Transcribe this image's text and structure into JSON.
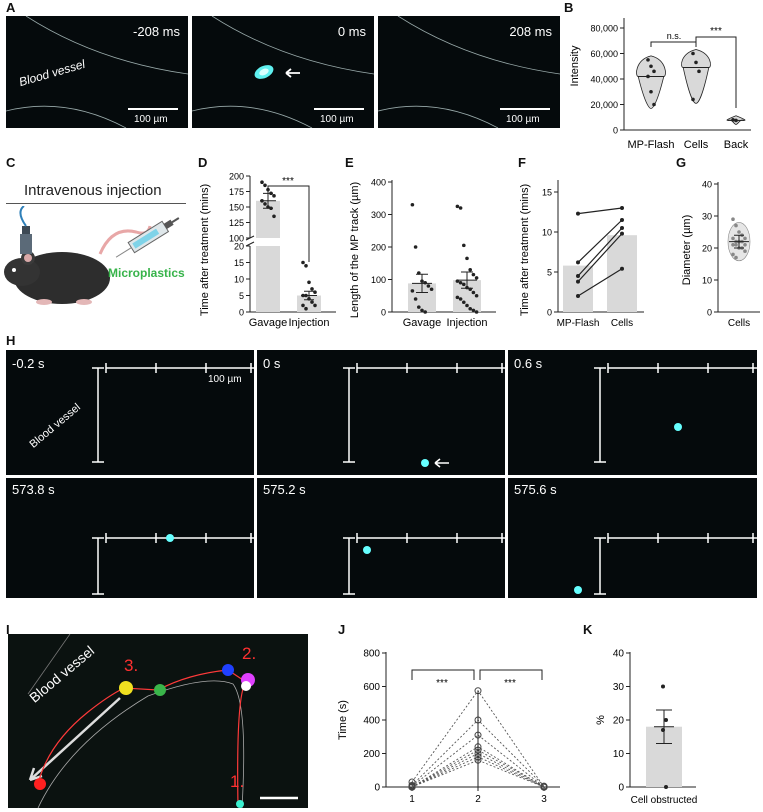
{
  "panel_labels": {
    "A": "A",
    "B": "B",
    "C": "C",
    "D": "D",
    "E": "E",
    "F": "F",
    "G": "G",
    "H": "H",
    "I": "I",
    "J": "J",
    "K": "K"
  },
  "panel_a": {
    "frames": [
      {
        "time": "-208 ms",
        "scale": "100 µm"
      },
      {
        "time": "0 ms",
        "scale": "100 µm"
      },
      {
        "time": "208 ms",
        "scale": "100 µm"
      }
    ],
    "vessel_label": "Blood vessel"
  },
  "panel_c": {
    "title": "Intravenous injection",
    "microplastics": "Microplastics"
  },
  "panel_h": {
    "frames": [
      "-0.2 s",
      "0 s",
      "0.6 s",
      "573.8 s",
      "575.2 s",
      "575.6 s"
    ],
    "vessel_label": "Blood vessel",
    "scale": "100 µm"
  },
  "panel_i": {
    "vessel_label": "Blood vessel",
    "markers": [
      "1.",
      "2.",
      "3."
    ]
  },
  "chart_data": [
    {
      "id": "B",
      "type": "violin",
      "ylabel": "Intensity",
      "ylim": [
        0,
        80000
      ],
      "yticks": [
        "0",
        "20,000",
        "40,000",
        "60,000",
        "80,000"
      ],
      "categories": [
        "MP-Flash",
        "Cells",
        "Back"
      ],
      "points": [
        [
          55000,
          50000,
          46000,
          42000,
          30000,
          20000
        ],
        [
          60000,
          53000,
          46000,
          24000
        ],
        [
          8000,
          7500
        ]
      ],
      "medians": [
        42000,
        49000,
        7500
      ],
      "annotations": [
        "n.s.",
        "***"
      ]
    },
    {
      "id": "D",
      "type": "bar",
      "ylabel": "Time after treatment (mins)",
      "yticks_low": [
        "0",
        "5",
        "10",
        "15",
        "20"
      ],
      "yticks_high": [
        "100",
        "125",
        "150",
        "175",
        "200"
      ],
      "categories": [
        "Gavage",
        "Injection"
      ],
      "values": [
        160,
        5
      ],
      "errors": [
        12,
        1.3
      ],
      "points": [
        [
          190,
          185,
          178,
          172,
          168,
          160,
          155,
          150,
          148,
          135
        ],
        [
          15,
          14,
          9,
          7,
          6,
          5,
          5,
          4,
          3,
          2,
          2,
          1
        ]
      ],
      "annotation": "***"
    },
    {
      "id": "E",
      "type": "bar",
      "ylabel": "Length of the MP track (µm)",
      "ylim": [
        0,
        400
      ],
      "yticks": [
        "0",
        "100",
        "200",
        "300",
        "400"
      ],
      "categories": [
        "Gavage",
        "Injection"
      ],
      "values": [
        88,
        98
      ],
      "errors": [
        28,
        25
      ],
      "points": [
        [
          330,
          200,
          120,
          95,
          90,
          80,
          70,
          65,
          40,
          15,
          5,
          0
        ],
        [
          325,
          320,
          205,
          165,
          130,
          115,
          105,
          95,
          90,
          85,
          75,
          70,
          60,
          50,
          45,
          40,
          30,
          20,
          10,
          5,
          0
        ]
      ]
    },
    {
      "id": "F",
      "type": "bar",
      "ylabel": "Time after treatment (mins)",
      "ylim": [
        0,
        15
      ],
      "yticks": [
        "0",
        "5",
        "10",
        "15"
      ],
      "categories": [
        "MP-Flash",
        "Cells"
      ],
      "values": [
        5.8,
        9.6
      ],
      "pairs": [
        [
          12.3,
          13.0
        ],
        [
          6.2,
          11.5
        ],
        [
          4.5,
          10.5
        ],
        [
          3.8,
          9.8
        ],
        [
          2.0,
          5.4
        ]
      ]
    },
    {
      "id": "G",
      "type": "scatter",
      "ylabel": "Diameter (µm)",
      "ylim": [
        0,
        40
      ],
      "yticks": [
        "0",
        "10",
        "20",
        "30",
        "40"
      ],
      "categories": [
        "Cells"
      ],
      "points": [
        [
          29,
          27,
          25,
          24,
          23,
          23,
          22,
          22,
          22,
          21,
          21,
          21,
          20,
          20,
          19,
          18,
          17
        ]
      ],
      "mean": 22,
      "error": 2
    },
    {
      "id": "J",
      "type": "line",
      "ylabel": "Time (s)",
      "ylim": [
        0,
        800
      ],
      "yticks": [
        "0",
        "200",
        "400",
        "600",
        "800"
      ],
      "x": [
        "1",
        "2",
        "3"
      ],
      "series": [
        [
          30,
          575,
          0
        ],
        [
          10,
          400,
          5
        ],
        [
          5,
          310,
          0
        ],
        [
          0,
          240,
          0
        ],
        [
          0,
          220,
          3
        ],
        [
          0,
          200,
          0
        ],
        [
          0,
          180,
          0
        ],
        [
          0,
          160,
          0
        ]
      ],
      "annotations": [
        "***",
        "***"
      ]
    },
    {
      "id": "K",
      "type": "bar",
      "ylabel": "%",
      "ylim": [
        0,
        40
      ],
      "yticks": [
        "0",
        "10",
        "20",
        "30",
        "40"
      ],
      "categories": [
        "Cell obstructed"
      ],
      "values": [
        18
      ],
      "errors": [
        5
      ],
      "points": [
        [
          30,
          20,
          17,
          0
        ]
      ]
    }
  ]
}
